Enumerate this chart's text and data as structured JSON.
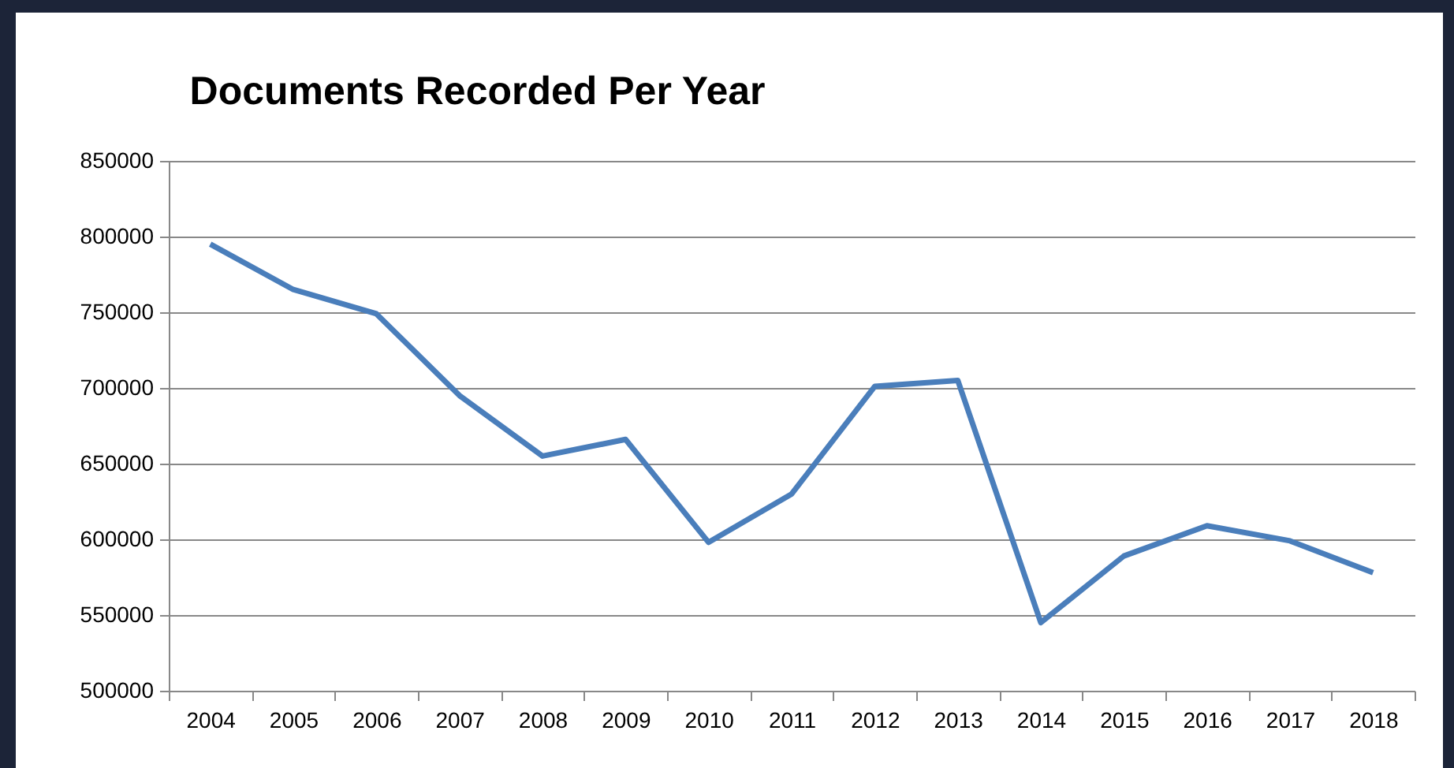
{
  "chart_data": {
    "type": "line",
    "title": "Documents Recorded Per Year",
    "categories": [
      "2004",
      "2005",
      "2006",
      "2007",
      "2008",
      "2009",
      "2010",
      "2011",
      "2012",
      "2013",
      "2014",
      "2015",
      "2016",
      "2017",
      "2018"
    ],
    "series": [
      {
        "color": "#4a7ebb",
        "values": [
          795000,
          765000,
          749000,
          695000,
          655000,
          666000,
          598000,
          630000,
          701000,
          705000,
          545000,
          589000,
          609000,
          599000,
          578000
        ]
      }
    ],
    "ylim": [
      500000,
      850000
    ],
    "yticks": [
      500000,
      550000,
      600000,
      650000,
      700000,
      750000,
      800000,
      850000
    ],
    "grid": "y",
    "legend": false,
    "marker": "none",
    "line_style": "solid"
  }
}
